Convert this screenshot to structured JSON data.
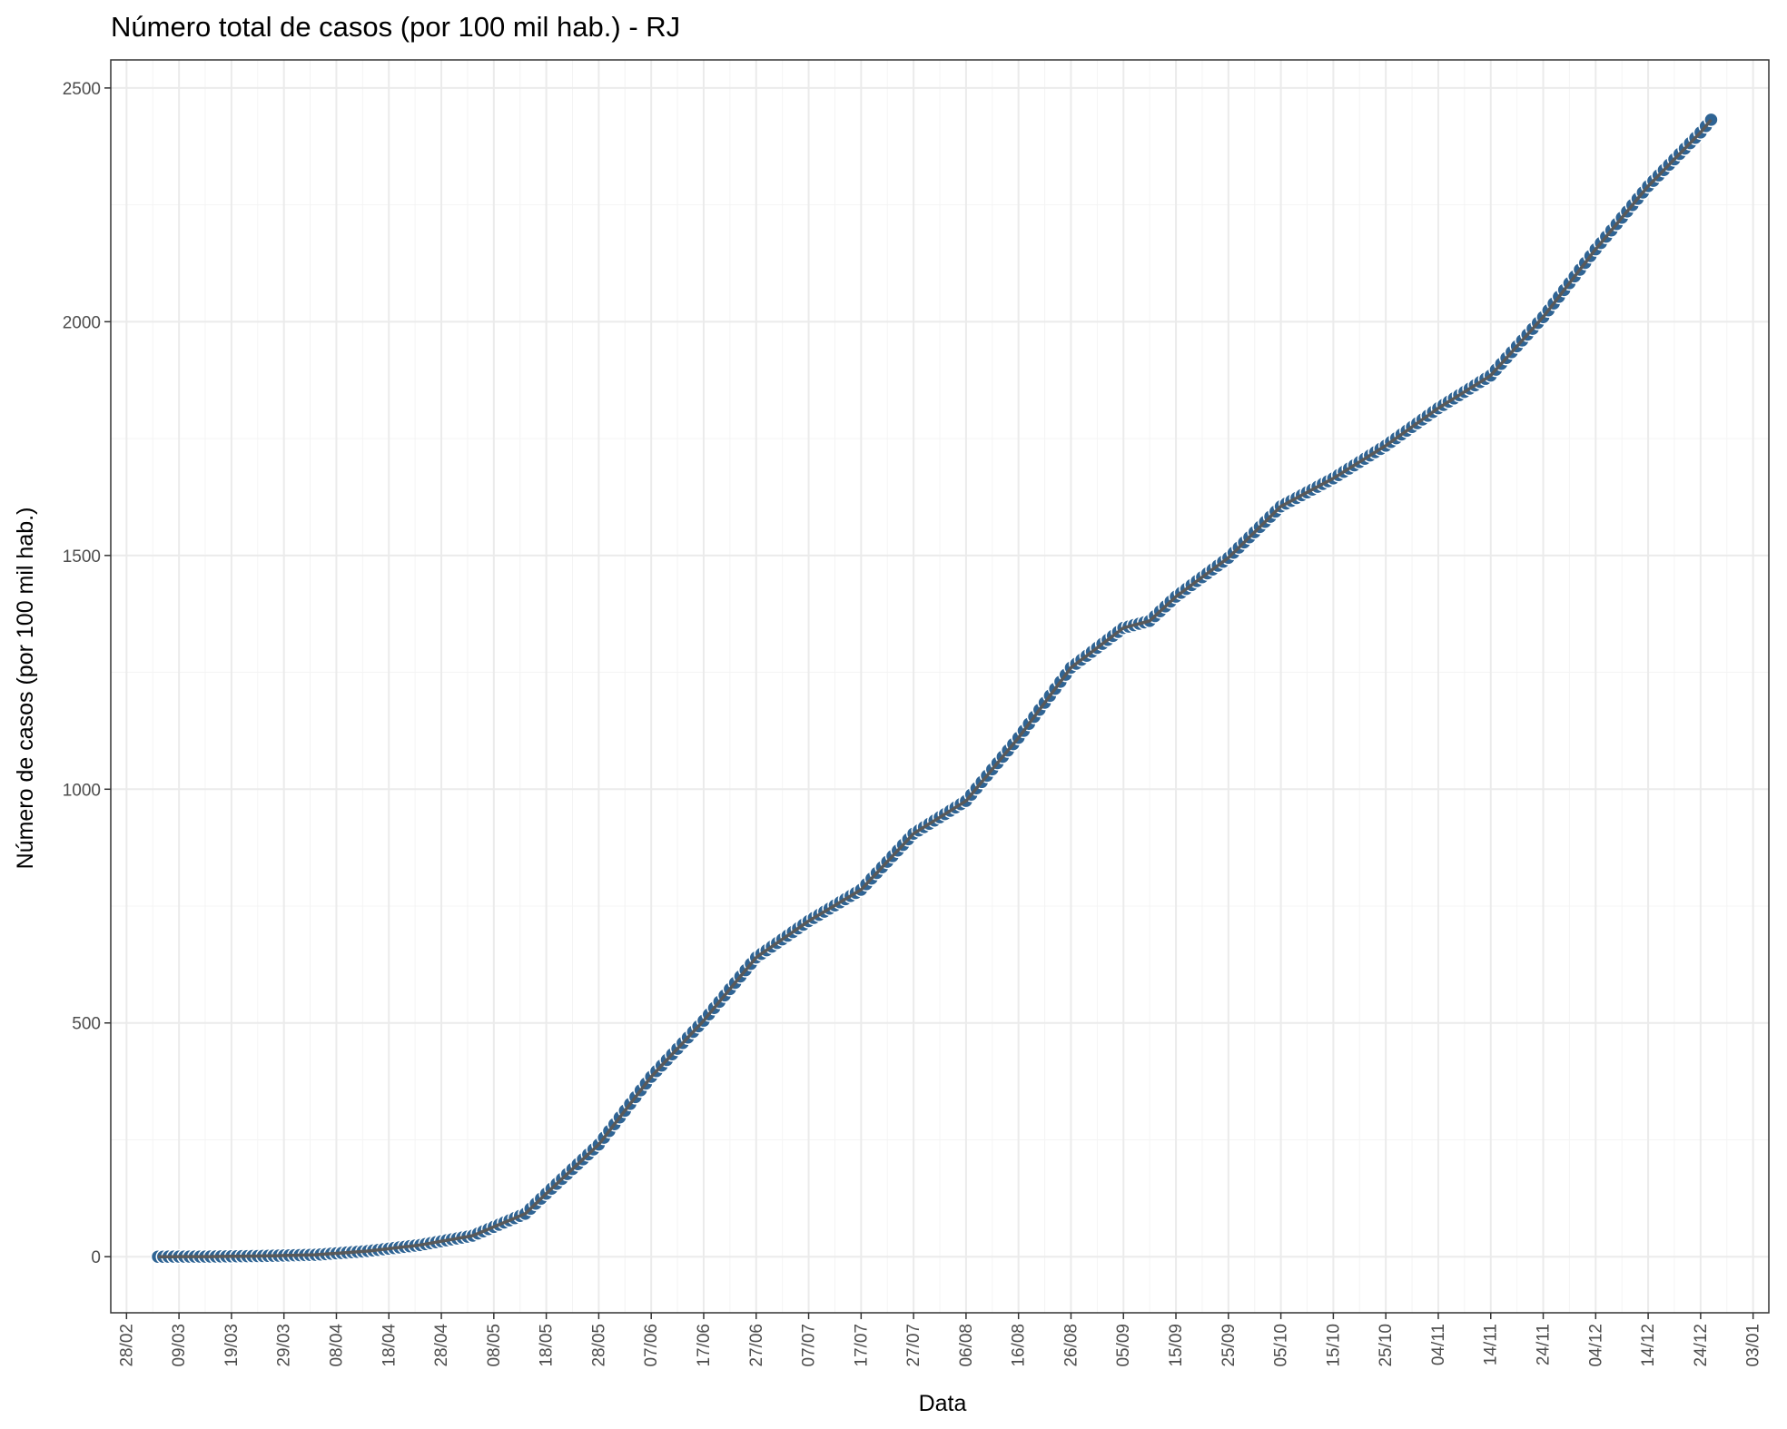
{
  "chart_data": {
    "type": "scatter",
    "title": "Número total de casos (por 100 mil hab.) - RJ",
    "xlabel": "Data",
    "ylabel": "Número de casos (por 100 mil hab.)",
    "x_is_date": true,
    "xlim": [
      "2020-02-25",
      "2021-01-06"
    ],
    "ylim": [
      -120,
      2560
    ],
    "y_ticks": [
      0,
      500,
      1000,
      1500,
      2000,
      2500
    ],
    "x_tick_dates": [
      "2020-02-28",
      "2020-03-09",
      "2020-03-19",
      "2020-03-29",
      "2020-04-08",
      "2020-04-18",
      "2020-04-28",
      "2020-05-08",
      "2020-05-18",
      "2020-05-28",
      "2020-06-07",
      "2020-06-17",
      "2020-06-27",
      "2020-07-07",
      "2020-07-17",
      "2020-07-27",
      "2020-08-06",
      "2020-08-16",
      "2020-08-26",
      "2020-09-05",
      "2020-09-15",
      "2020-09-25",
      "2020-10-05",
      "2020-10-15",
      "2020-10-25",
      "2020-11-04",
      "2020-11-14",
      "2020-11-24",
      "2020-12-04",
      "2020-12-14",
      "2020-12-24",
      "2021-01-03"
    ],
    "x_tick_labels": [
      "28/02",
      "09/03",
      "19/03",
      "29/03",
      "08/04",
      "18/04",
      "28/04",
      "08/05",
      "18/05",
      "28/05",
      "07/06",
      "17/06",
      "27/06",
      "07/07",
      "17/07",
      "27/07",
      "06/08",
      "16/08",
      "26/08",
      "05/09",
      "15/09",
      "25/09",
      "05/10",
      "15/10",
      "25/10",
      "04/11",
      "14/11",
      "24/11",
      "04/12",
      "14/12",
      "24/12",
      "03/01"
    ],
    "grid": true,
    "series": [
      {
        "color": "#2f6494",
        "line_color": "#595959",
        "anchors": [
          [
            "2020-03-05",
            0
          ],
          [
            "2020-03-15",
            0.3
          ],
          [
            "2020-03-25",
            1.5
          ],
          [
            "2020-04-04",
            4
          ],
          [
            "2020-04-14",
            12
          ],
          [
            "2020-04-24",
            25
          ],
          [
            "2020-05-04",
            45
          ],
          [
            "2020-05-14",
            92
          ],
          [
            "2020-05-18",
            135
          ],
          [
            "2020-05-28",
            240
          ],
          [
            "2020-06-07",
            385
          ],
          [
            "2020-06-17",
            505
          ],
          [
            "2020-06-27",
            640
          ],
          [
            "2020-07-07",
            718
          ],
          [
            "2020-07-17",
            785
          ],
          [
            "2020-07-27",
            905
          ],
          [
            "2020-08-06",
            975
          ],
          [
            "2020-08-16",
            1110
          ],
          [
            "2020-08-26",
            1260
          ],
          [
            "2020-09-05",
            1345
          ],
          [
            "2020-09-10",
            1360
          ],
          [
            "2020-09-15",
            1412
          ],
          [
            "2020-09-25",
            1495
          ],
          [
            "2020-10-05",
            1605
          ],
          [
            "2020-10-15",
            1665
          ],
          [
            "2020-10-25",
            1735
          ],
          [
            "2020-11-04",
            1815
          ],
          [
            "2020-11-14",
            1885
          ],
          [
            "2020-11-24",
            2010
          ],
          [
            "2020-12-04",
            2155
          ],
          [
            "2020-12-14",
            2290
          ],
          [
            "2020-12-24",
            2405
          ],
          [
            "2020-12-26",
            2432
          ]
        ]
      }
    ]
  }
}
